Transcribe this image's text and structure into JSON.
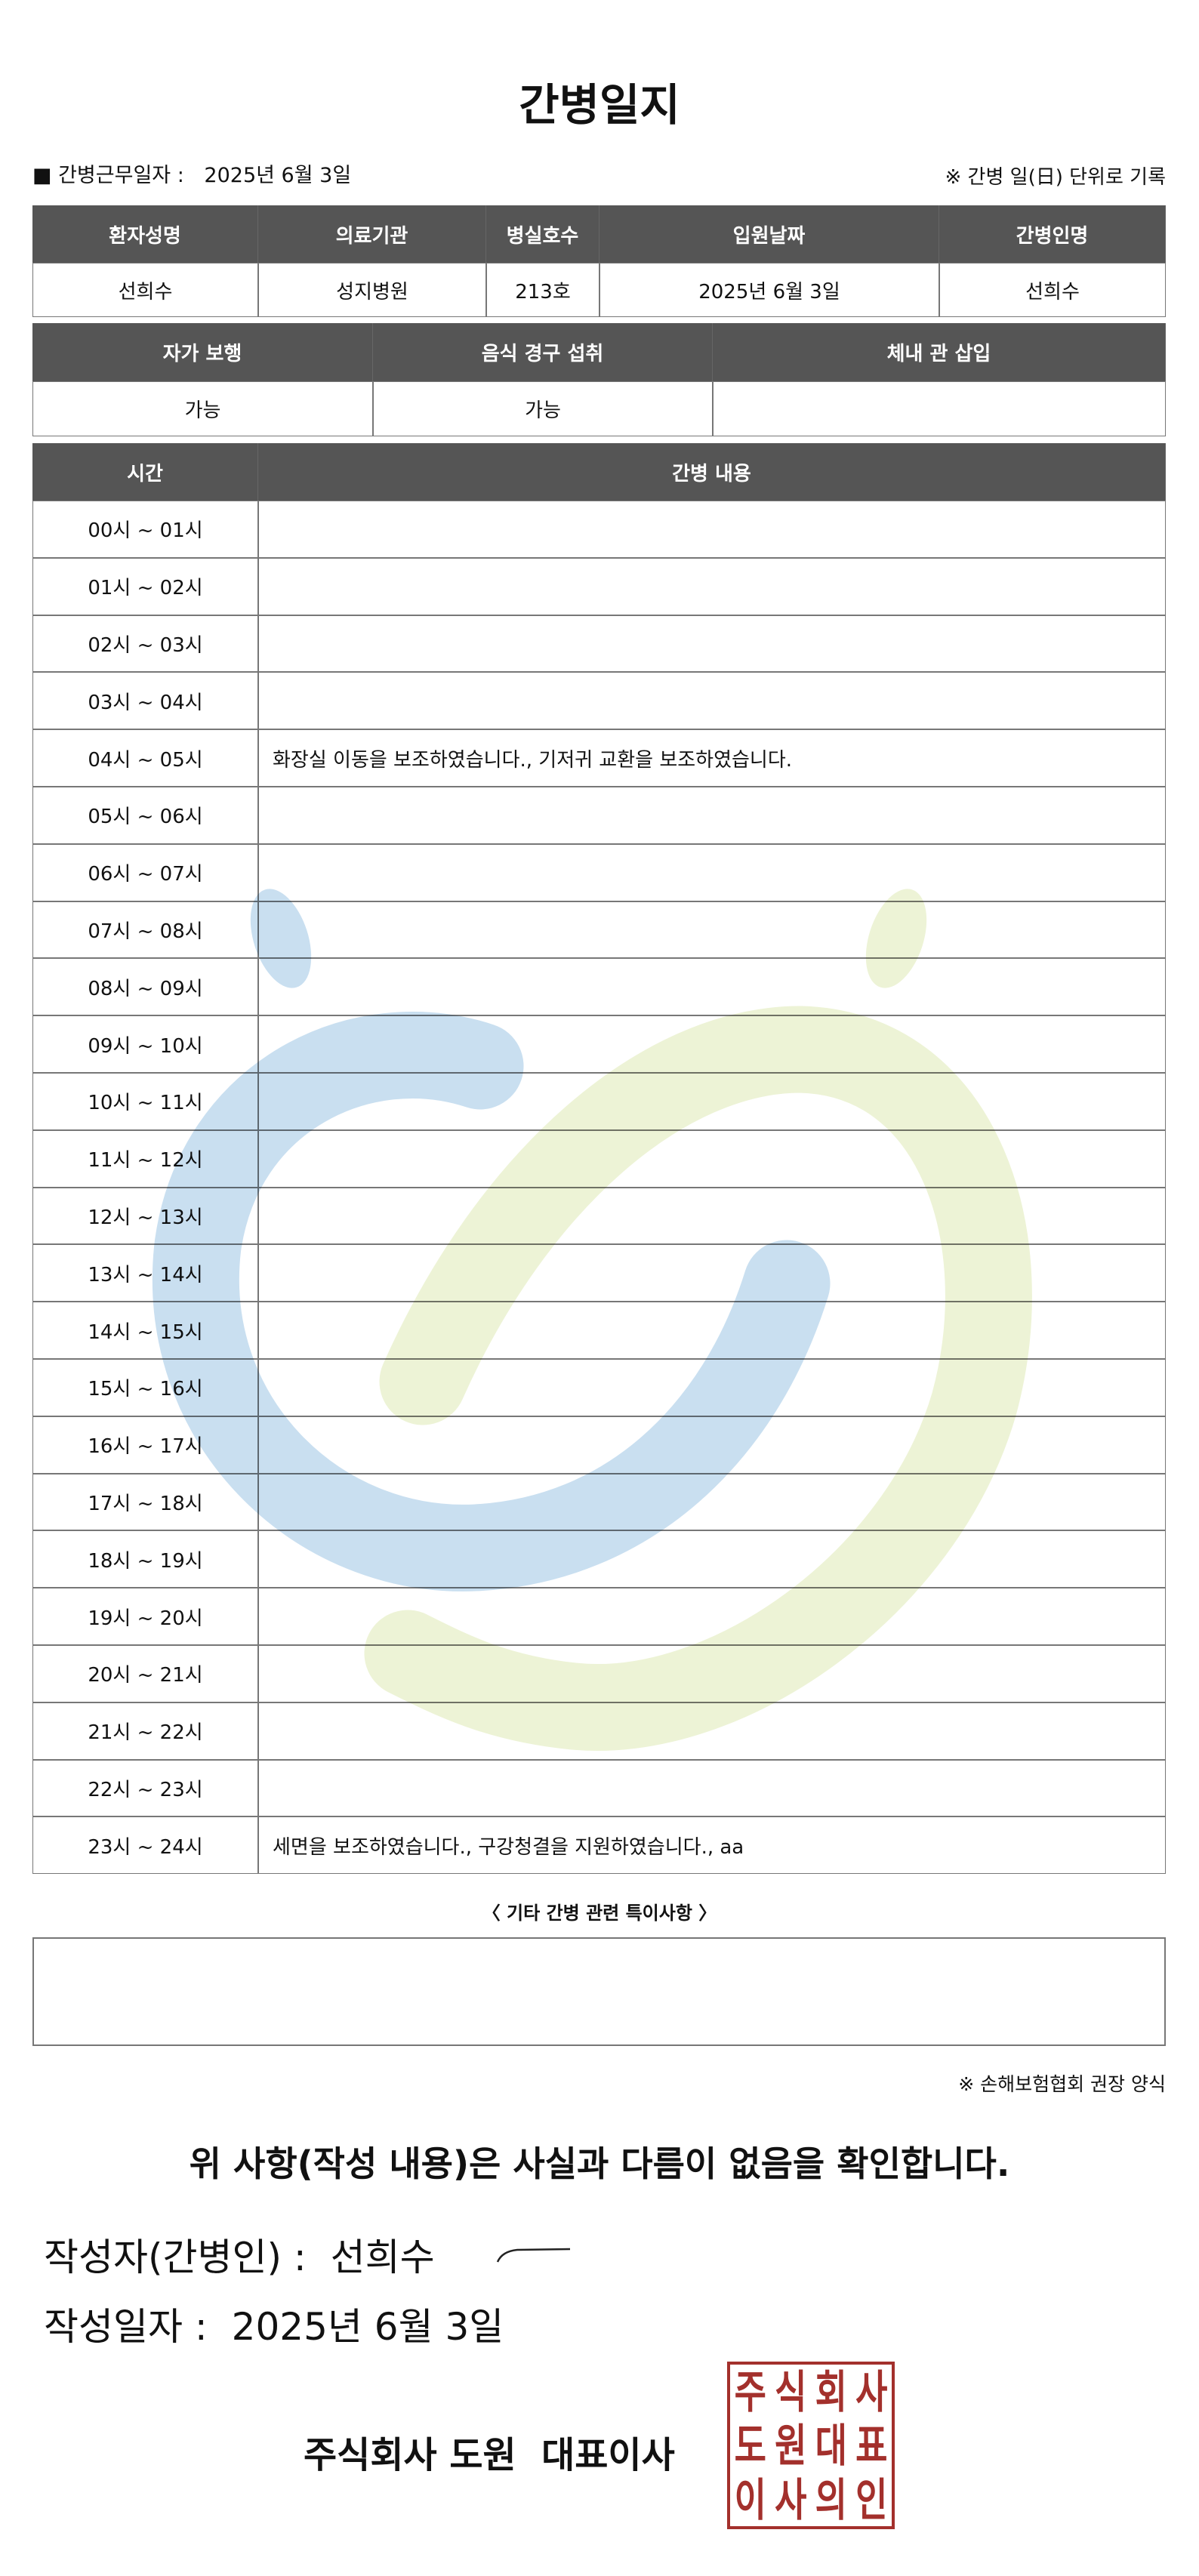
{
  "title": "간병일지",
  "info": {
    "work_date_label": "■ 간병근무일자  :",
    "work_date": "2025년 6월 3일",
    "unit_note": "※ 간병 일(日) 단위로 기록"
  },
  "patient_table": {
    "headers": [
      "환자성명",
      "의료기관",
      "병실호수",
      "입원날짜",
      "간병인명"
    ],
    "values": [
      "선희수",
      "성지병원",
      "213호",
      "2025년 6월 3일",
      "선희수"
    ]
  },
  "status_table": {
    "headers": [
      "자가 보행",
      "음식 경구 섭취",
      "체내 관 삽입"
    ],
    "values": [
      "가능",
      "가능",
      ""
    ]
  },
  "log_table": {
    "headers": [
      "시간",
      "간병 내용"
    ],
    "rows": [
      {
        "time": "00시 ~ 01시",
        "content": ""
      },
      {
        "time": "01시 ~ 02시",
        "content": ""
      },
      {
        "time": "02시 ~ 03시",
        "content": ""
      },
      {
        "time": "03시 ~ 04시",
        "content": ""
      },
      {
        "time": "04시 ~ 05시",
        "content": "화장실 이동을 보조하였습니다., 기저귀 교환을 보조하였습니다."
      },
      {
        "time": "05시 ~ 06시",
        "content": ""
      },
      {
        "time": "06시 ~ 07시",
        "content": ""
      },
      {
        "time": "07시 ~ 08시",
        "content": ""
      },
      {
        "time": "08시 ~ 09시",
        "content": ""
      },
      {
        "time": "09시 ~ 10시",
        "content": ""
      },
      {
        "time": "10시 ~ 11시",
        "content": ""
      },
      {
        "time": "11시 ~ 12시",
        "content": ""
      },
      {
        "time": "12시 ~ 13시",
        "content": ""
      },
      {
        "time": "13시 ~ 14시",
        "content": ""
      },
      {
        "time": "14시 ~ 15시",
        "content": ""
      },
      {
        "time": "15시 ~ 16시",
        "content": ""
      },
      {
        "time": "16시 ~ 17시",
        "content": ""
      },
      {
        "time": "17시 ~ 18시",
        "content": ""
      },
      {
        "time": "18시 ~ 19시",
        "content": ""
      },
      {
        "time": "19시 ~ 20시",
        "content": ""
      },
      {
        "time": "20시 ~ 21시",
        "content": ""
      },
      {
        "time": "21시 ~ 22시",
        "content": ""
      },
      {
        "time": "22시 ~ 23시",
        "content": ""
      },
      {
        "time": "23시 ~ 24시",
        "content": "세면을 보조하였습니다., 구강청결을 지원하였습니다., aa"
      }
    ]
  },
  "special_notes": {
    "label": "〈 기타 간병 관련 특이사항 〉",
    "value": ""
  },
  "form_source": "※ 손해보험협회 권장 양식",
  "confirmation": "위 사항(작성 내용)은 사실과 다름이 없음을 확인합니다.",
  "writer": {
    "label": "작성자(간병인) :",
    "name": "선희수"
  },
  "written_date": {
    "label": "작성일자 :",
    "value": "2025년 6월 3일"
  },
  "company": {
    "name": "주식회사 도원  대표이사",
    "seal_text": [
      "주",
      "식",
      "회",
      "사",
      "도",
      "원",
      "대",
      "표",
      "이",
      "사",
      "의",
      "인"
    ]
  },
  "colors": {
    "header_bg": "#555555",
    "seal": "#a3302c",
    "watermark_blue": "#c9dff0",
    "watermark_green": "#edf3d6"
  }
}
